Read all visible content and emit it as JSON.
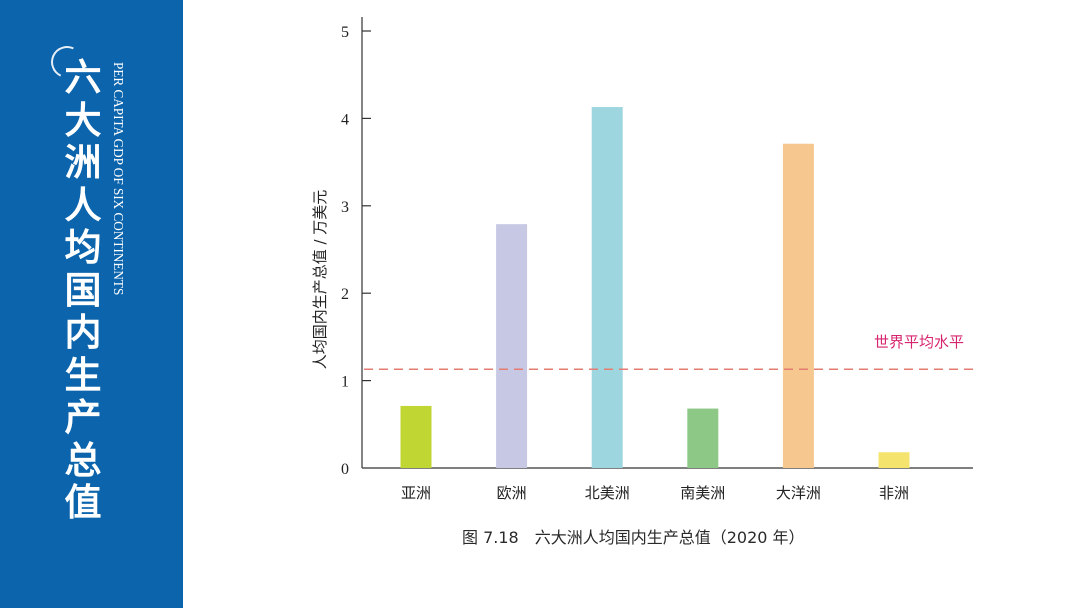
{
  "panel": {
    "title_cn": "六大洲人均国内生产总值",
    "title_en": "PER CAPITA GDP OF SIX CONTINENTS"
  },
  "caption": "图 7.18　六大洲人均国内生产总值（2020 年）",
  "chart_data": {
    "type": "bar",
    "title": "",
    "xlabel": "",
    "ylabel": "人均国内生产总值 / 万美元",
    "ylim": [
      0,
      5
    ],
    "yticks": [
      0,
      1,
      2,
      3,
      4,
      5
    ],
    "categories": [
      "亚洲",
      "欧洲",
      "北美洲",
      "南美洲",
      "大洋洲",
      "非洲"
    ],
    "values": [
      0.71,
      2.79,
      4.13,
      0.68,
      3.71,
      0.18
    ],
    "bar_colors": [
      "#c0d633",
      "#c7c8e4",
      "#9ed6e0",
      "#8dc887",
      "#f6c78f",
      "#f4e46e"
    ],
    "reference_line": {
      "label": "世界平均水平",
      "value": 1.13,
      "color": "#e47c72",
      "label_color": "#d6246e"
    },
    "grid": false
  }
}
